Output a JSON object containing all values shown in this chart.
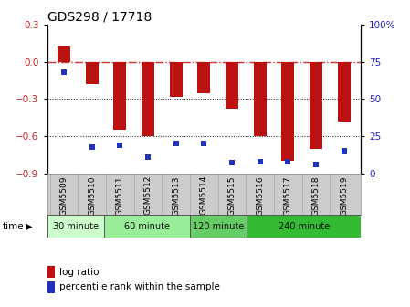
{
  "title": "GDS298 / 17718",
  "samples": [
    "GSM5509",
    "GSM5510",
    "GSM5511",
    "GSM5512",
    "GSM5513",
    "GSM5514",
    "GSM5515",
    "GSM5516",
    "GSM5517",
    "GSM5518",
    "GSM5519"
  ],
  "log_ratio": [
    0.13,
    -0.18,
    -0.55,
    -0.6,
    -0.28,
    -0.25,
    -0.38,
    -0.6,
    -0.8,
    -0.7,
    -0.48
  ],
  "percentile": [
    68,
    18,
    19,
    11,
    20,
    20,
    7,
    8,
    8,
    6,
    15
  ],
  "ylim_left": [
    -0.9,
    0.3
  ],
  "ylim_right": [
    0,
    100
  ],
  "yticks_left": [
    -0.9,
    -0.6,
    -0.3,
    0.0,
    0.3
  ],
  "yticks_right": [
    0,
    25,
    50,
    75,
    100
  ],
  "bar_color": "#bb1111",
  "dot_color": "#2233bb",
  "zero_line_color": "#cc3333",
  "grid_color": "#111111",
  "time_groups": [
    {
      "label": "30 minute",
      "start": 0,
      "end": 2,
      "color": "#ccffcc"
    },
    {
      "label": "60 minute",
      "start": 2,
      "end": 5,
      "color": "#99ee99"
    },
    {
      "label": "120 minute",
      "start": 5,
      "end": 7,
      "color": "#66cc66"
    },
    {
      "label": "240 minute",
      "start": 7,
      "end": 11,
      "color": "#33bb33"
    }
  ],
  "legend_log_ratio": "log ratio",
  "legend_percentile": "percentile rank within the sample",
  "time_label": "time",
  "bg_color": "#ffffff",
  "plot_bg": "#ffffff",
  "tick_label_color_left": "#cc2222",
  "tick_label_color_right": "#2222cc",
  "xtick_bg": "#cccccc",
  "bar_width": 0.45
}
